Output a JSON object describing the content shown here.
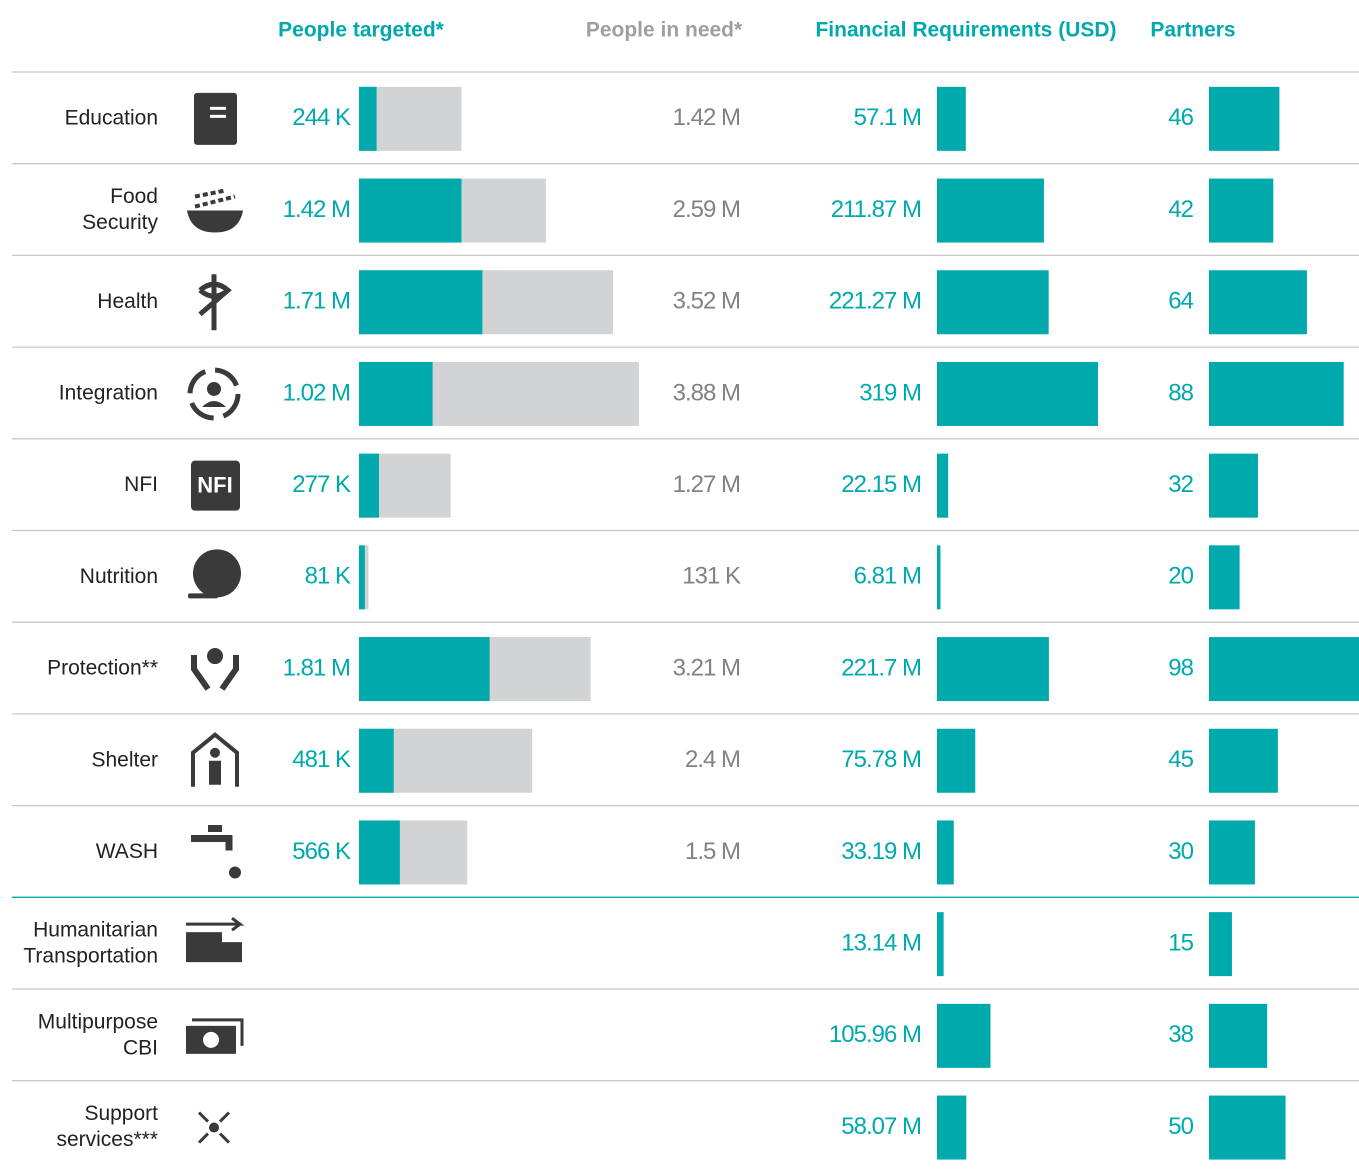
{
  "headers": [
    "People targeted*",
    "People in need*",
    "Financial Requirements (USD)",
    "Partners"
  ],
  "rows": [
    {
      "sector": [
        "Education"
      ],
      "targeted": {
        "value": 244000,
        "label": "244 K"
      },
      "in_need": {
        "value": 1420000,
        "label": "1.42 M"
      },
      "funding": {
        "value": 57100000,
        "label": "57.1 M"
      },
      "partners": 46
    },
    {
      "sector": [
        "Food",
        "Security"
      ],
      "targeted": {
        "value": 1420000,
        "label": "1.42 M"
      },
      "in_need": {
        "value": 2590000,
        "label": "2.59 M"
      },
      "funding": {
        "value": 211870000,
        "label": "211.87 M"
      },
      "partners": 42
    },
    {
      "sector": [
        "Health"
      ],
      "targeted": {
        "value": 1710000,
        "label": "1.71 M"
      },
      "in_need": {
        "value": 3520000,
        "label": "3.52 M"
      },
      "funding": {
        "value": 221270000,
        "label": "221.27 M"
      },
      "partners": 64
    },
    {
      "sector": [
        "Integration"
      ],
      "targeted": {
        "value": 1020000,
        "label": "1.02 M"
      },
      "in_need": {
        "value": 3880000,
        "label": "3.88 M"
      },
      "funding": {
        "value": 319000000,
        "label": "319 M"
      },
      "partners": 88
    },
    {
      "sector": [
        "NFI"
      ],
      "icon_text": "NFI",
      "targeted": {
        "value": 277000,
        "label": "277 K"
      },
      "in_need": {
        "value": 1270000,
        "label": "1.27 M"
      },
      "funding": {
        "value": 22150000,
        "label": "22.15 M"
      },
      "partners": 32
    },
    {
      "sector": [
        "Nutrition"
      ],
      "targeted": {
        "value": 81000,
        "label": "81 K"
      },
      "in_need": {
        "value": 131000,
        "label": "131 K"
      },
      "funding": {
        "value": 6810000,
        "label": "6.81 M"
      },
      "partners": 20
    },
    {
      "sector": [
        "Protection**"
      ],
      "targeted": {
        "value": 1810000,
        "label": "1.81 M"
      },
      "in_need": {
        "value": 3210000,
        "label": "3.21 M"
      },
      "funding": {
        "value": 221700000,
        "label": "221.7 M"
      },
      "partners": 98
    },
    {
      "sector": [
        "Shelter"
      ],
      "targeted": {
        "value": 481000,
        "label": "481 K"
      },
      "in_need": {
        "value": 2400000,
        "label": "2.4 M"
      },
      "funding": {
        "value": 75780000,
        "label": "75.78 M"
      },
      "partners": 45
    },
    {
      "sector": [
        "WASH"
      ],
      "targeted": {
        "value": 566000,
        "label": "566 K"
      },
      "in_need": {
        "value": 1500000,
        "label": "1.5 M"
      },
      "funding": {
        "value": 33190000,
        "label": "33.19 M"
      },
      "partners": 30
    },
    {
      "sector": [
        "Humanitarian",
        "Transportation"
      ],
      "funding": {
        "value": 13140000,
        "label": "13.14 M"
      },
      "partners": 15
    },
    {
      "sector": [
        "Multipurpose",
        "CBI"
      ],
      "funding": {
        "value": 105960000,
        "label": "105.96 M"
      },
      "partners": 38
    },
    {
      "sector": [
        "Support",
        "services***"
      ],
      "funding": {
        "value": 58070000,
        "label": "58.07 M"
      },
      "partners": 50
    }
  ]
}
